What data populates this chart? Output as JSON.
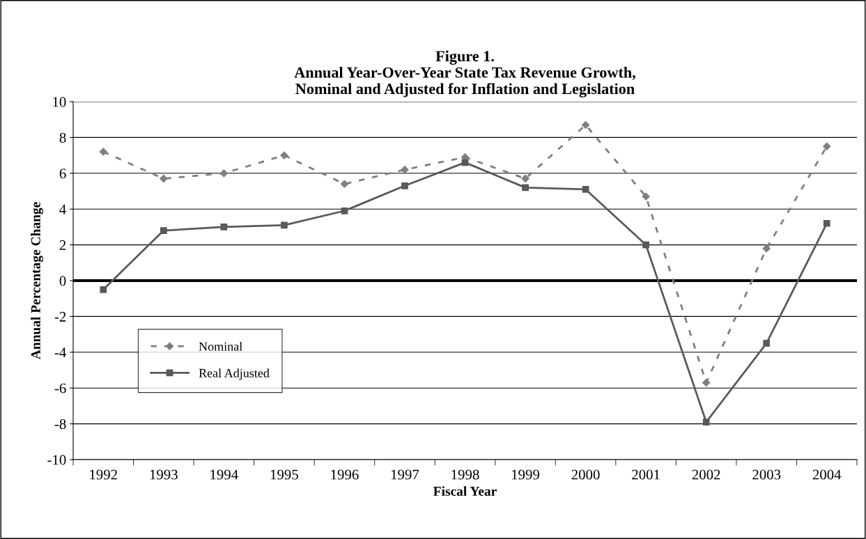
{
  "chart_data": {
    "type": "line",
    "title": "Figure 1.\nAnnual Year-Over-Year State Tax Revenue Growth,\nNominal and Adjusted for Inflation and Legislation",
    "xlabel": "Fiscal Year",
    "ylabel": "Annual Percentage Change",
    "categories": [
      "1992",
      "1993",
      "1994",
      "1995",
      "1996",
      "1997",
      "1998",
      "1999",
      "2000",
      "2001",
      "2002",
      "2003",
      "2004"
    ],
    "series": [
      {
        "name": "Nominal",
        "color": "#7f7f7f",
        "marker": "diamond",
        "line_style": "dashed",
        "values": [
          7.2,
          5.7,
          6.0,
          7.0,
          5.4,
          6.2,
          6.9,
          5.7,
          8.7,
          4.7,
          -5.7,
          1.8,
          7.5
        ]
      },
      {
        "name": "Real Adjusted",
        "color": "#595959",
        "marker": "square",
        "line_style": "solid",
        "values": [
          -0.5,
          2.8,
          3.0,
          3.1,
          3.9,
          5.3,
          6.6,
          5.2,
          5.1,
          2.0,
          -7.9,
          -3.5,
          3.2
        ]
      }
    ],
    "ylim": [
      -10,
      10
    ],
    "yticks": [
      -10,
      -8,
      -6,
      -4,
      -2,
      0,
      2,
      4,
      6,
      8,
      10
    ],
    "ref_lines": [
      {
        "axis": "y",
        "value": 0,
        "color": "#000000"
      }
    ],
    "grid": "y",
    "legend": "bottom left"
  }
}
